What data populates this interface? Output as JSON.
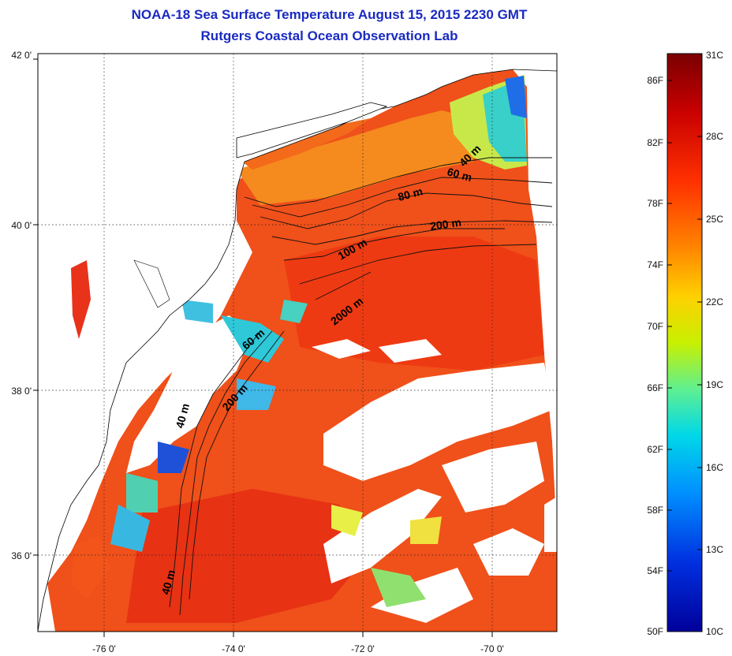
{
  "header": {
    "title": "NOAA-18 Sea Surface Temperature August 15, 2015 2230 GMT",
    "subtitle": "Rutgers Coastal Ocean Observation Lab"
  },
  "map": {
    "lat_ticks": [
      "42 0'",
      "40 0'",
      "38 0'",
      "36 0'"
    ],
    "lon_ticks": [
      "-76 0'",
      "-74 0'",
      "-72 0'",
      "-70 0'"
    ],
    "lat_range": [
      35,
      42
    ],
    "lon_range": [
      -77,
      -69
    ],
    "grid": true,
    "contour_labels": [
      "40 m",
      "60 m",
      "80 m",
      "200 m",
      "100 m",
      "2000 m",
      "60 m",
      "200 m",
      "40 m",
      "40 m"
    ]
  },
  "colorbar": {
    "fahrenheit_labels": [
      "86F",
      "82F",
      "78F",
      "74F",
      "70F",
      "66F",
      "62F",
      "58F",
      "54F",
      "50F"
    ],
    "celsius_labels": [
      "31C",
      "28C",
      "25C",
      "22C",
      "19C",
      "16C",
      "13C",
      "10C"
    ],
    "colors": [
      "#7a0000",
      "#c80000",
      "#ff3000",
      "#ff8000",
      "#ffd000",
      "#c8f000",
      "#60f090",
      "#00d8e8",
      "#0090ff",
      "#0030e0",
      "#00009a"
    ]
  }
}
